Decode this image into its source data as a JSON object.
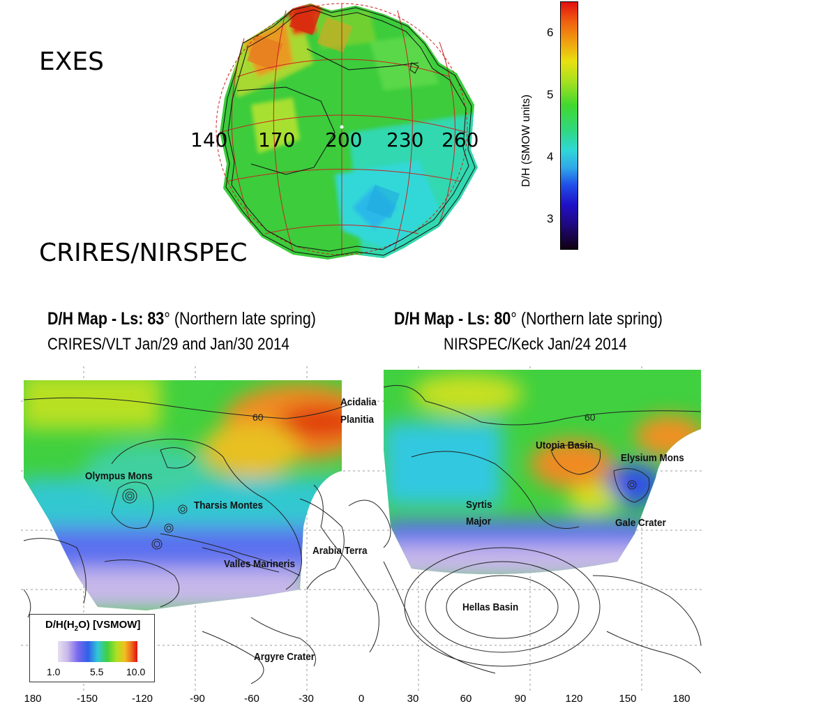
{
  "top_panel": {
    "instrument_top": "EXES",
    "instrument_bottom": "CRIRES/NIRSPEC",
    "longitude_labels": [
      "140",
      "170",
      "200",
      "230",
      "260"
    ],
    "colorbar": {
      "title": "D/H (SMOW units)",
      "ticks": [
        "6",
        "5",
        "4",
        "3"
      ]
    }
  },
  "maps": [
    {
      "title_bold": "D/H Map - Ls: 83",
      "title_rest": "° (Northern late spring)",
      "subtitle": "CRIRES/VLT Jan/29 and Jan/30 2014",
      "features": [
        "Acidalia",
        "Planitia",
        "Olympus Mons",
        "Tharsis Montes",
        "Valles Marineris",
        "Arabia Terra",
        "Argyre Crater"
      ],
      "contour_label": "60"
    },
    {
      "title_bold": "D/H Map - Ls: 80",
      "title_rest": "° (Northern late spring)",
      "subtitle": "NIRSPEC/Keck Jan/24 2014",
      "features": [
        "Utopia Basin",
        "Elysium Mons",
        "Syrtis",
        "Major",
        "Gale Crater",
        "Hellas Basin"
      ],
      "contour_label": "60"
    }
  ],
  "legend": {
    "title_pre": "D/H(H",
    "title_sub": "2",
    "title_post": "O) [VSMOW]",
    "ticks": [
      "1.0",
      "5.5",
      "10.0"
    ]
  },
  "x_axis_ticks": [
    "180",
    "-150",
    "-120",
    "-90",
    "-60",
    "-30",
    "0",
    "30",
    "60",
    "90",
    "120",
    "150",
    "180"
  ],
  "colors": {
    "green": "#3ccc3c",
    "cyan": "#30d8d8",
    "yellow": "#d8e820",
    "orange": "#f09020",
    "red": "#e02010",
    "blue": "#5a78ee",
    "lavender": "#c8b8e8"
  }
}
